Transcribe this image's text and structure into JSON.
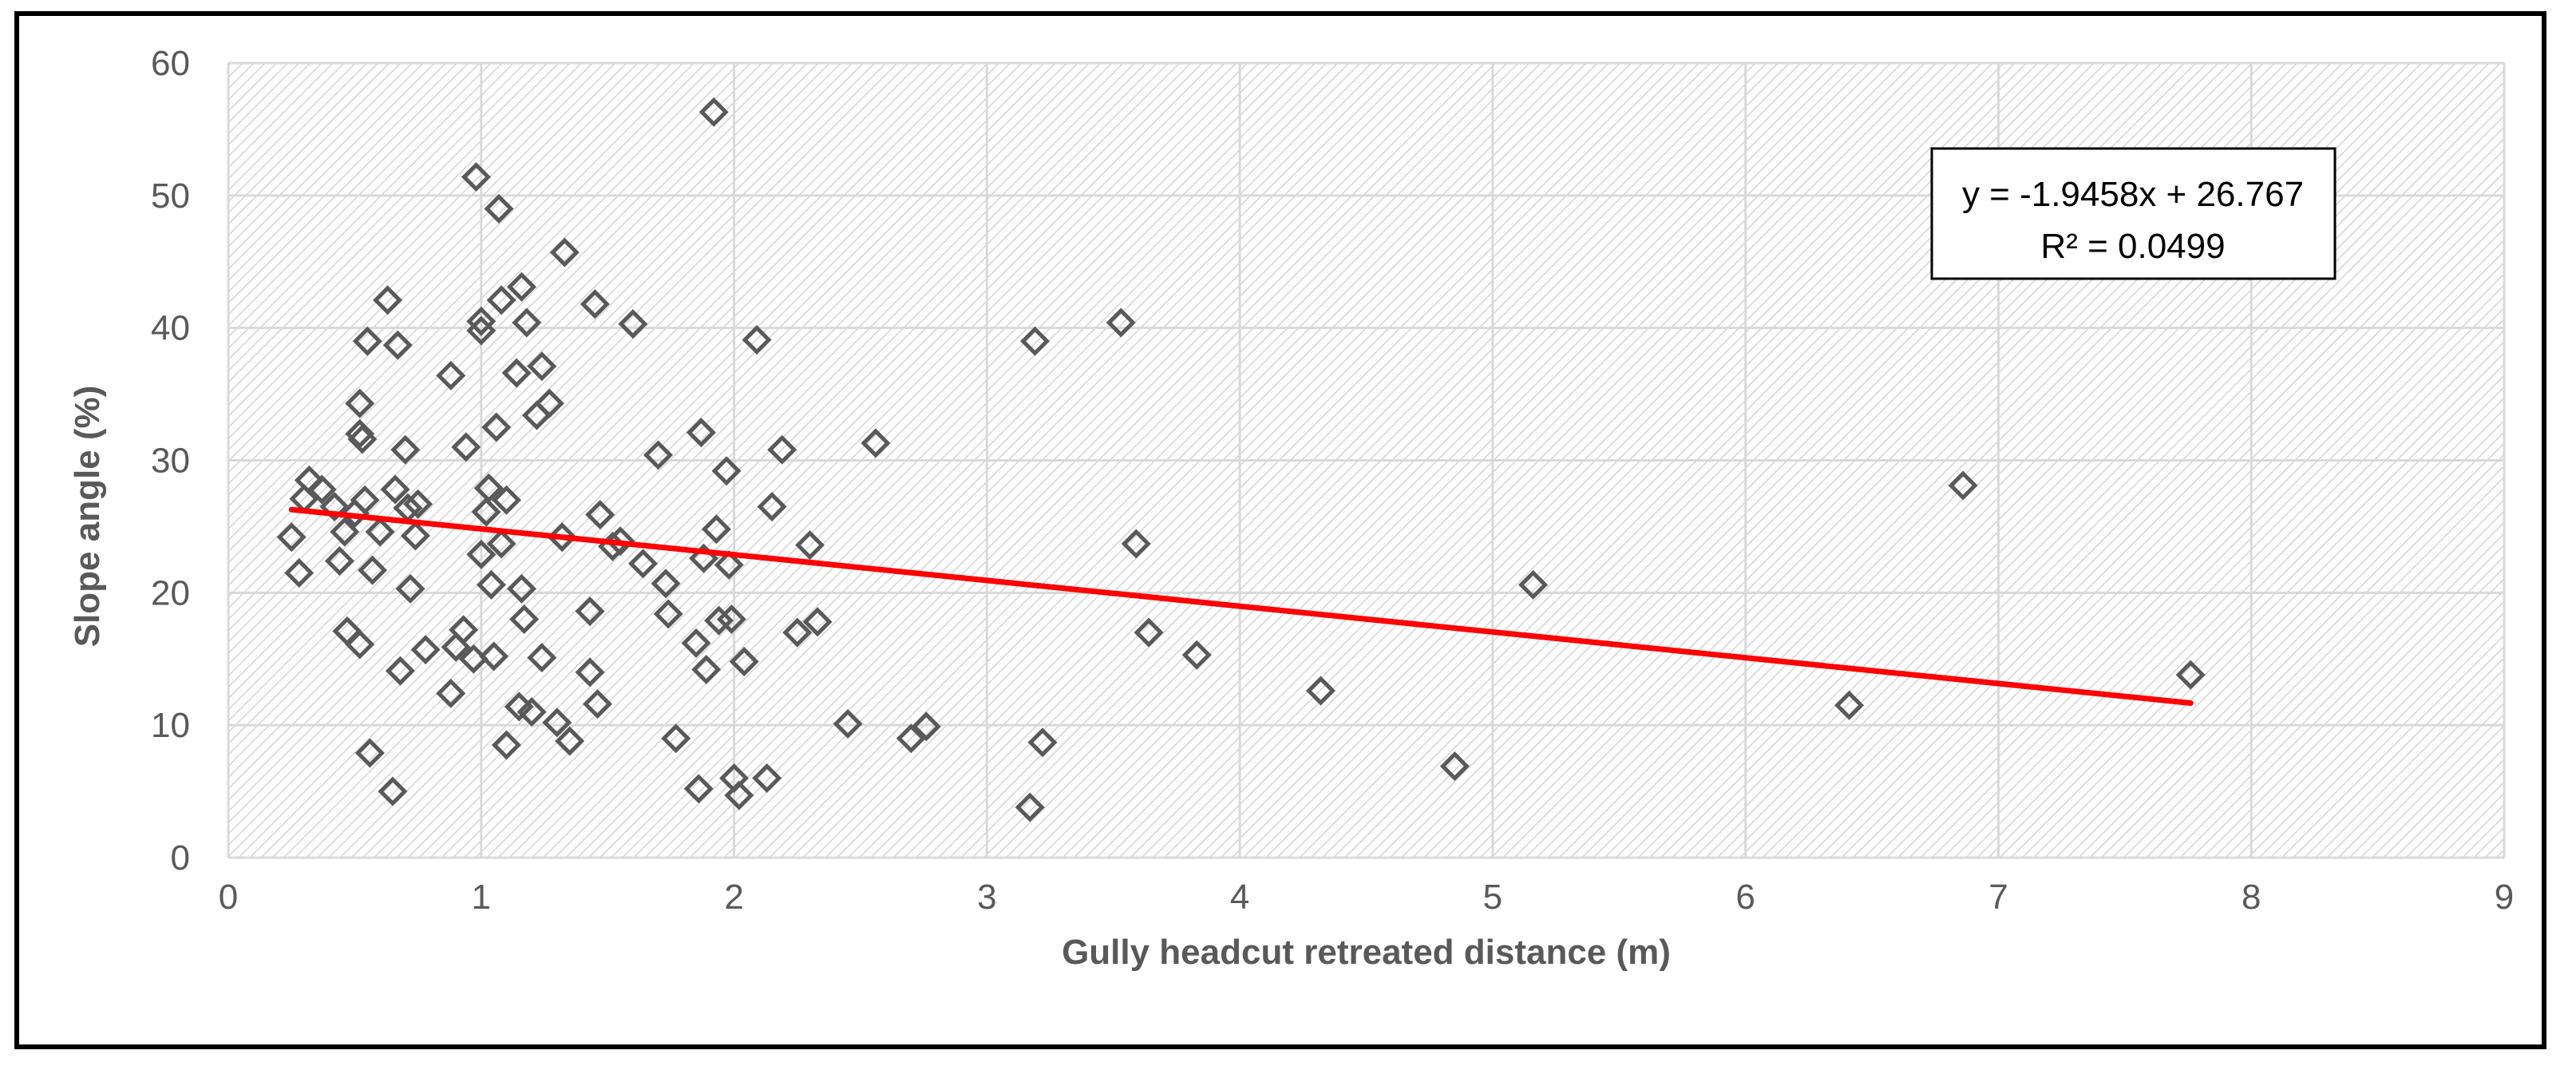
{
  "chart_data": {
    "type": "scatter",
    "title": "",
    "xlabel": "Gully headcut retreated distance (m)",
    "ylabel": "Slope angle (%)",
    "xlim": [
      0,
      9
    ],
    "ylim": [
      0,
      60
    ],
    "x_ticks": [
      "0",
      "1",
      "2",
      "3",
      "4",
      "5",
      "6",
      "7",
      "8",
      "9"
    ],
    "y_ticks": [
      "0",
      "10",
      "20",
      "30",
      "40",
      "50",
      "60"
    ],
    "grid": true,
    "legend": "none",
    "marker": "diamond-open",
    "marker_color": "#595959",
    "trendline": {
      "equation": "y = -1.9458x + 26.767",
      "r_squared": "R² = 0.0499",
      "slope": -1.9458,
      "intercept": 26.767,
      "x_range": [
        0.25,
        7.76
      ],
      "color": "#ff0000"
    },
    "points": [
      [
        0.25,
        24.2
      ],
      [
        0.28,
        21.5
      ],
      [
        0.3,
        27.1
      ],
      [
        0.32,
        28.5
      ],
      [
        0.37,
        27.8
      ],
      [
        0.42,
        26.5
      ],
      [
        0.44,
        22.4
      ],
      [
        0.46,
        24.6
      ],
      [
        0.47,
        17.1
      ],
      [
        0.5,
        26.0
      ],
      [
        0.52,
        16.1
      ],
      [
        0.52,
        34.3
      ],
      [
        0.52,
        32.0
      ],
      [
        0.53,
        31.6
      ],
      [
        0.54,
        27.0
      ],
      [
        0.55,
        39.0
      ],
      [
        0.57,
        21.7
      ],
      [
        0.56,
        7.9
      ],
      [
        0.6,
        24.6
      ],
      [
        0.63,
        42.1
      ],
      [
        0.65,
        5.0
      ],
      [
        0.66,
        27.8
      ],
      [
        0.67,
        38.7
      ],
      [
        0.68,
        14.1
      ],
      [
        0.7,
        30.8
      ],
      [
        0.71,
        26.4
      ],
      [
        0.72,
        20.3
      ],
      [
        0.74,
        24.3
      ],
      [
        0.75,
        26.7
      ],
      [
        0.78,
        15.7
      ],
      [
        0.88,
        36.4
      ],
      [
        0.88,
        12.4
      ],
      [
        0.9,
        15.9
      ],
      [
        0.93,
        17.2
      ],
      [
        0.94,
        31.0
      ],
      [
        0.97,
        15.0
      ],
      [
        0.98,
        51.4
      ],
      [
        1.0,
        40.5
      ],
      [
        1.0,
        39.8
      ],
      [
        1.0,
        22.9
      ],
      [
        1.02,
        26.1
      ],
      [
        1.03,
        27.9
      ],
      [
        1.04,
        20.6
      ],
      [
        1.05,
        15.2
      ],
      [
        1.06,
        32.5
      ],
      [
        1.07,
        49.0
      ],
      [
        1.08,
        42.1
      ],
      [
        1.08,
        23.7
      ],
      [
        1.1,
        27.0
      ],
      [
        1.1,
        8.5
      ],
      [
        1.14,
        36.6
      ],
      [
        1.15,
        11.4
      ],
      [
        1.16,
        43.1
      ],
      [
        1.16,
        20.3
      ],
      [
        1.17,
        18.0
      ],
      [
        1.18,
        40.4
      ],
      [
        1.2,
        11.0
      ],
      [
        1.22,
        33.4
      ],
      [
        1.24,
        37.1
      ],
      [
        1.24,
        15.1
      ],
      [
        1.27,
        34.3
      ],
      [
        1.3,
        10.2
      ],
      [
        1.32,
        24.2
      ],
      [
        1.33,
        45.7
      ],
      [
        1.35,
        8.8
      ],
      [
        1.43,
        18.6
      ],
      [
        1.43,
        14.0
      ],
      [
        1.45,
        41.8
      ],
      [
        1.46,
        11.6
      ],
      [
        1.47,
        25.9
      ],
      [
        1.52,
        23.5
      ],
      [
        1.55,
        23.9
      ],
      [
        1.6,
        40.3
      ],
      [
        1.64,
        22.2
      ],
      [
        1.7,
        30.4
      ],
      [
        1.73,
        20.7
      ],
      [
        1.74,
        18.4
      ],
      [
        1.77,
        9.0
      ],
      [
        1.85,
        16.2
      ],
      [
        1.86,
        5.2
      ],
      [
        1.87,
        32.1
      ],
      [
        1.88,
        22.6
      ],
      [
        1.89,
        14.2
      ],
      [
        1.92,
        56.3
      ],
      [
        1.93,
        24.8
      ],
      [
        1.94,
        17.9
      ],
      [
        1.97,
        29.2
      ],
      [
        1.98,
        22.1
      ],
      [
        1.99,
        18.0
      ],
      [
        2.0,
        6.0
      ],
      [
        2.02,
        4.7
      ],
      [
        2.04,
        14.8
      ],
      [
        2.09,
        39.1
      ],
      [
        2.13,
        6.0
      ],
      [
        2.15,
        26.5
      ],
      [
        2.19,
        30.8
      ],
      [
        2.25,
        17.0
      ],
      [
        2.3,
        23.6
      ],
      [
        2.33,
        17.8
      ],
      [
        2.45,
        10.1
      ],
      [
        2.56,
        31.3
      ],
      [
        2.7,
        9.0
      ],
      [
        2.76,
        9.9
      ],
      [
        3.17,
        3.8
      ],
      [
        3.19,
        39.0
      ],
      [
        3.22,
        8.7
      ],
      [
        3.53,
        40.4
      ],
      [
        3.59,
        23.7
      ],
      [
        3.64,
        17.0
      ],
      [
        3.83,
        15.3
      ],
      [
        4.32,
        12.6
      ],
      [
        4.85,
        6.9
      ],
      [
        5.16,
        20.6
      ],
      [
        6.41,
        11.5
      ],
      [
        6.86,
        28.1
      ],
      [
        7.76,
        13.8
      ]
    ]
  }
}
